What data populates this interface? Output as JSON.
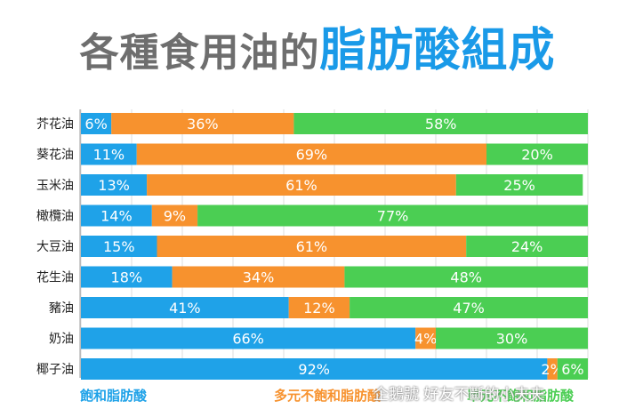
{
  "title": {
    "main": "各種食用油的",
    "highlight": "脂肪酸組成"
  },
  "colors": {
    "saturated": "#1fa2e8",
    "polyunsaturated": "#f7922e",
    "monounsaturated": "#4bce53",
    "title_gray": "#6e6e6e",
    "title_blue": "#1a9ae8"
  },
  "legend": [
    {
      "label": "飽和脂肪酸",
      "color": "#1fa2e8"
    },
    {
      "label": "多元不飽和脂肪酸",
      "color": "#f7922e"
    },
    {
      "label": "單元不飽和脂肪酸",
      "color": "#4bce53"
    }
  ],
  "watermark": "企鵝號 好友不斷的小夫夫",
  "chart_data": {
    "type": "bar",
    "orientation": "horizontal",
    "stacked": true,
    "categories": [
      "芥花油",
      "葵花油",
      "玉米油",
      "橄欖油",
      "大豆油",
      "花生油",
      "豬油",
      "奶油",
      "椰子油"
    ],
    "series": [
      {
        "name": "飽和脂肪酸",
        "values": [
          6,
          11,
          13,
          14,
          15,
          18,
          41,
          66,
          92
        ],
        "labels": [
          "6%",
          "11%",
          "13%",
          "14%",
          "15%",
          "18%",
          "41%",
          "66%",
          "92%"
        ]
      },
      {
        "name": "多元不飽和脂肪酸",
        "values": [
          36,
          69,
          61,
          9,
          61,
          34,
          12,
          4,
          2
        ],
        "labels": [
          "36%",
          "69%",
          "61%",
          "9%",
          "61%",
          "34%",
          "12%",
          "4%",
          "2%"
        ]
      },
      {
        "name": "單元不飽和脂肪酸",
        "values": [
          58,
          20,
          25,
          77,
          24,
          48,
          47,
          30,
          6
        ],
        "labels": [
          "58%",
          "20%",
          "25%",
          "77%",
          "24%",
          "48%",
          "47%",
          "30%",
          "6%"
        ]
      }
    ],
    "xlim": [
      0,
      100
    ],
    "grid": true,
    "legend_position": "bottom"
  }
}
